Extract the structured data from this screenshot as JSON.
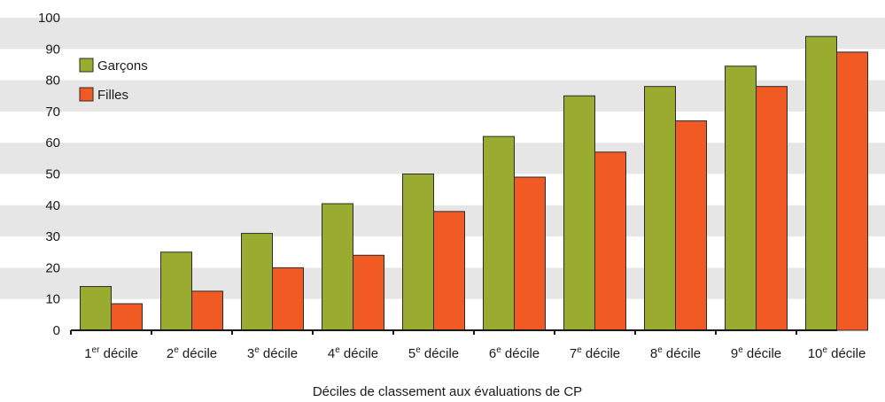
{
  "chart_data": {
    "type": "bar",
    "title": "",
    "xlabel": "Déciles de classement aux évaluations de CP",
    "ylabel": "",
    "ylim": [
      0,
      100
    ],
    "yticks": [
      0,
      10,
      20,
      30,
      40,
      50,
      60,
      70,
      80,
      90,
      100
    ],
    "grid": "alternating horizontal bands",
    "legend": "top-left",
    "categories": [
      {
        "num": "1",
        "sup": "er",
        "word": "décile"
      },
      {
        "num": "2",
        "sup": "e",
        "word": "décile"
      },
      {
        "num": "3",
        "sup": "e",
        "word": "décile"
      },
      {
        "num": "4",
        "sup": "e",
        "word": "décile"
      },
      {
        "num": "5",
        "sup": "e",
        "word": "décile"
      },
      {
        "num": "6",
        "sup": "e",
        "word": "décile"
      },
      {
        "num": "7",
        "sup": "e",
        "word": "décile"
      },
      {
        "num": "8",
        "sup": "e",
        "word": "décile"
      },
      {
        "num": "9",
        "sup": "e",
        "word": "décile"
      },
      {
        "num": "10",
        "sup": "e",
        "word": "décile"
      }
    ],
    "series": [
      {
        "name": "Garçons",
        "color": "#9aac2f",
        "values": [
          14,
          25,
          31,
          40.5,
          50,
          62,
          75,
          78,
          84.5,
          94
        ]
      },
      {
        "name": "Filles",
        "color": "#f15a22",
        "values": [
          8.5,
          12.5,
          20,
          24,
          38,
          49,
          57,
          67,
          78,
          89
        ]
      }
    ],
    "band_color": "#e6e6e6"
  }
}
